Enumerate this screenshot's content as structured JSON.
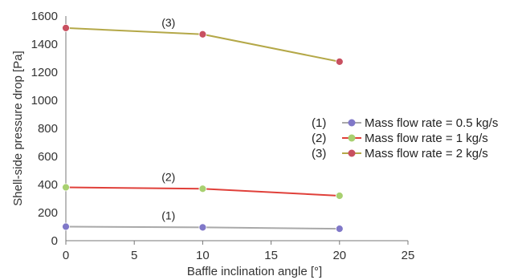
{
  "chart_data": {
    "type": "line",
    "title": "",
    "xlabel": "Baffle inclination angle [°]",
    "ylabel": "Shell-side pressure drop [Pa]",
    "xlim": [
      0,
      25
    ],
    "ylim": [
      0,
      1600
    ],
    "xticks": [
      0,
      5,
      10,
      15,
      20,
      25
    ],
    "yticks": [
      0,
      200,
      400,
      600,
      800,
      1000,
      1200,
      1400,
      1600
    ],
    "x": [
      0,
      10,
      20
    ],
    "grid": false,
    "legend_position": "right",
    "series": [
      {
        "name": "Mass flow rate = 0.5 kg/s",
        "legend_prefix": "(1)",
        "annotation": "(1)",
        "values": [
          100,
          95,
          85
        ],
        "line_color": "#a9a9a9",
        "marker_color": "#8078c8"
      },
      {
        "name": "Mass flow rate = 1 kg/s",
        "legend_prefix": "(2)",
        "annotation": "(2)",
        "values": [
          380,
          370,
          320
        ],
        "line_color": "#e0403a",
        "marker_color": "#a8d070"
      },
      {
        "name": "Mass flow rate = 2 kg/s",
        "legend_prefix": "(3)",
        "annotation": "(3)",
        "values": [
          1515,
          1470,
          1275
        ],
        "line_color": "#b4a848",
        "marker_color": "#c85060"
      }
    ]
  }
}
